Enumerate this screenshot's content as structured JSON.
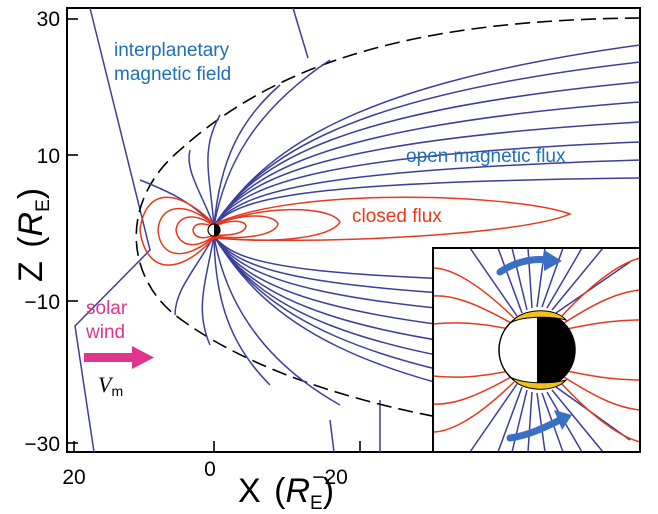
{
  "axes": {
    "x_label": "X",
    "x_unit": "R",
    "x_unit_sub": "E",
    "y_label": "Z",
    "y_unit": "R",
    "y_unit_sub": "E",
    "x_ticks": [
      "20",
      "0",
      "−20"
    ],
    "y_ticks": [
      "30",
      "10",
      "−10",
      "−30"
    ]
  },
  "labels": {
    "imf_line1": "interplanetary",
    "imf_line2": "magnetic field",
    "open_flux": "open magnetic flux",
    "closed_flux": "closed flux",
    "solar_line1": "solar",
    "solar_line2": "wind",
    "velocity": "V",
    "velocity_sub": "m"
  },
  "colors": {
    "open_field_lines": "#3b3f9a",
    "closed_field_lines": "#e8391c",
    "label_blue": "#1f6fb8",
    "label_pink": "#e0358f",
    "auroral_oval": "#f2c21b"
  },
  "icons": {
    "solar_wind_arrow": "arrow-right",
    "flux_transport_arrows": "curved-arrow"
  }
}
